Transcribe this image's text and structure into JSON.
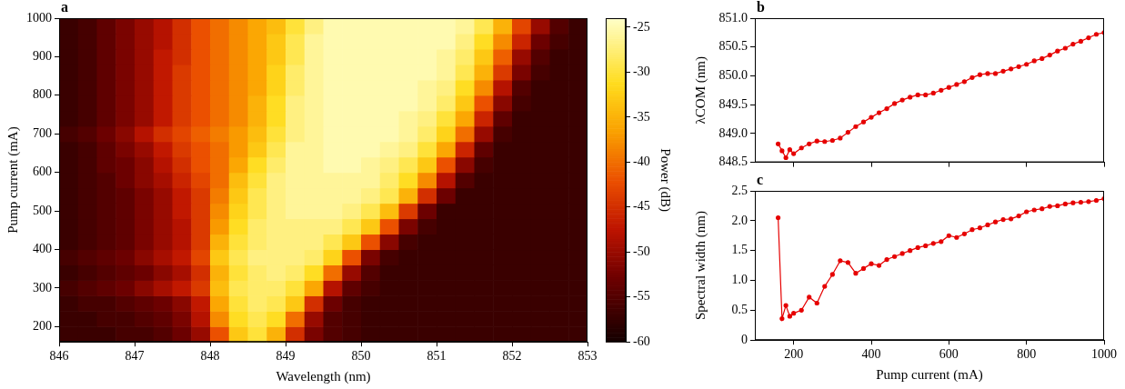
{
  "chart_data": [
    {
      "type": "heatmap",
      "title": "a",
      "xlabel": "Wavelength (nm)",
      "ylabel": "Pump current (mA)",
      "xlim": [
        846,
        853
      ],
      "xticks": [
        846,
        847,
        848,
        849,
        850,
        851,
        852,
        853
      ],
      "ylim": [
        160,
        1000
      ],
      "yticks": [
        200,
        300,
        400,
        500,
        600,
        700,
        800,
        900,
        1000
      ],
      "grid": false,
      "x": [
        846.125,
        846.375,
        846.625,
        846.875,
        847.125,
        847.375,
        847.625,
        847.875,
        848.125,
        848.375,
        848.625,
        848.875,
        849.125,
        849.375,
        849.625,
        849.875,
        850.125,
        850.375,
        850.625,
        850.875,
        851.125,
        851.375,
        851.625,
        851.875,
        852.125,
        852.375,
        852.625,
        852.875
      ],
      "y": [
        180,
        220,
        260,
        300,
        340,
        380,
        420,
        460,
        500,
        540,
        580,
        620,
        660,
        700,
        740,
        780,
        820,
        860,
        900,
        940,
        980
      ],
      "z": [
        [
          -57,
          -57,
          -57,
          -56,
          -56,
          -55,
          -53,
          -50,
          -42,
          -33,
          -30,
          -35,
          -45,
          -52,
          -55,
          -56,
          -57,
          -57,
          -57,
          -57,
          -57,
          -57,
          -57,
          -57,
          -57,
          -57,
          -57,
          -57
        ],
        [
          -57,
          -57,
          -56,
          -56,
          -55,
          -54,
          -52,
          -48,
          -38,
          -31,
          -29,
          -31,
          -40,
          -50,
          -55,
          -56,
          -57,
          -57,
          -57,
          -57,
          -57,
          -57,
          -57,
          -57,
          -57,
          -57,
          -57,
          -57
        ],
        [
          -57,
          -56,
          -56,
          -55,
          -54,
          -53,
          -51,
          -47,
          -36,
          -30,
          -28,
          -29,
          -33,
          -45,
          -53,
          -56,
          -57,
          -57,
          -57,
          -57,
          -57,
          -57,
          -57,
          -57,
          -57,
          -57,
          -57,
          -57
        ],
        [
          -56,
          -55,
          -54,
          -53,
          -51,
          -49,
          -47,
          -44,
          -34,
          -29,
          -28,
          -28,
          -30,
          -36,
          -48,
          -54,
          -56,
          -57,
          -57,
          -57,
          -57,
          -57,
          -57,
          -57,
          -57,
          -57,
          -57,
          -57
        ],
        [
          -57,
          -56,
          -55,
          -54,
          -53,
          -51,
          -49,
          -45,
          -35,
          -30,
          -28,
          -27,
          -28,
          -31,
          -40,
          -50,
          -55,
          -57,
          -57,
          -57,
          -57,
          -57,
          -57,
          -57,
          -57,
          -57,
          -57,
          -57
        ],
        [
          -56,
          -55,
          -54,
          -53,
          -51,
          -49,
          -47,
          -43,
          -33,
          -29,
          -27,
          -27,
          -27,
          -28,
          -32,
          -42,
          -52,
          -56,
          -57,
          -57,
          -57,
          -57,
          -57,
          -57,
          -57,
          -57,
          -57,
          -57
        ],
        [
          -57,
          -56,
          -55,
          -54,
          -52,
          -50,
          -48,
          -44,
          -35,
          -30,
          -28,
          -27,
          -27,
          -27,
          -29,
          -33,
          -42,
          -51,
          -56,
          -57,
          -57,
          -57,
          -57,
          -57,
          -57,
          -57,
          -57,
          -57
        ],
        [
          -57,
          -56,
          -55,
          -54,
          -52,
          -50,
          -48,
          -44,
          -37,
          -31,
          -28,
          -27,
          -27,
          -27,
          -27,
          -29,
          -33,
          -42,
          -52,
          -56,
          -57,
          -57,
          -57,
          -57,
          -57,
          -57,
          -57,
          -57
        ],
        [
          -57,
          -56,
          -55,
          -54,
          -52,
          -50,
          -47,
          -44,
          -38,
          -32,
          -29,
          -27,
          -26,
          -26,
          -26,
          -27,
          -29,
          -34,
          -44,
          -53,
          -57,
          -57,
          -57,
          -57,
          -57,
          -57,
          -57,
          -57
        ],
        [
          -57,
          -56,
          -55,
          -54,
          -52,
          -50,
          -47,
          -44,
          -39,
          -33,
          -29,
          -27,
          -26,
          -26,
          -26,
          -26,
          -27,
          -29,
          -35,
          -45,
          -53,
          -57,
          -57,
          -57,
          -57,
          -57,
          -57,
          -57
        ],
        [
          -57,
          -56,
          -55,
          -53,
          -51,
          -49,
          -46,
          -43,
          -40,
          -34,
          -30,
          -27,
          -26,
          -26,
          -26,
          -26,
          -26,
          -28,
          -31,
          -38,
          -48,
          -55,
          -57,
          -57,
          -57,
          -57,
          -57,
          -57
        ],
        [
          -57,
          -56,
          -54,
          -53,
          -51,
          -48,
          -45,
          -42,
          -40,
          -36,
          -31,
          -28,
          -26,
          -26,
          -25,
          -25,
          -26,
          -27,
          -29,
          -33,
          -42,
          -51,
          -56,
          -57,
          -57,
          -57,
          -57,
          -57
        ],
        [
          -57,
          -56,
          -54,
          -52,
          -50,
          -47,
          -44,
          -42,
          -40,
          -37,
          -33,
          -29,
          -26,
          -26,
          -25,
          -25,
          -25,
          -26,
          -27,
          -30,
          -36,
          -46,
          -54,
          -57,
          -57,
          -57,
          -57,
          -57
        ],
        [
          -56,
          -55,
          -53,
          -51,
          -48,
          -45,
          -43,
          -41,
          -39,
          -37,
          -34,
          -30,
          -27,
          -26,
          -25,
          -25,
          -25,
          -25,
          -26,
          -28,
          -32,
          -40,
          -50,
          -56,
          -57,
          -57,
          -57,
          -57
        ],
        [
          -57,
          -56,
          -54,
          -52,
          -50,
          -47,
          -44,
          -42,
          -40,
          -38,
          -35,
          -31,
          -27,
          -26,
          -25,
          -25,
          -25,
          -25,
          -26,
          -27,
          -30,
          -36,
          -46,
          -54,
          -57,
          -57,
          -57,
          -57
        ],
        [
          -57,
          -56,
          -54,
          -52,
          -50,
          -47,
          -44,
          -42,
          -40,
          -38,
          -35,
          -31,
          -27,
          -26,
          -25,
          -25,
          -25,
          -25,
          -25,
          -26,
          -28,
          -33,
          -42,
          -51,
          -56,
          -57,
          -57,
          -57
        ],
        [
          -57,
          -56,
          -54,
          -52,
          -50,
          -47,
          -44,
          -42,
          -40,
          -38,
          -36,
          -32,
          -28,
          -26,
          -25,
          -25,
          -25,
          -25,
          -25,
          -26,
          -27,
          -31,
          -38,
          -48,
          -55,
          -57,
          -57,
          -57
        ],
        [
          -57,
          -56,
          -54,
          -52,
          -50,
          -47,
          -44,
          -42,
          -40,
          -38,
          -36,
          -32,
          -28,
          -26,
          -25,
          -25,
          -25,
          -25,
          -25,
          -25,
          -26,
          -29,
          -35,
          -44,
          -52,
          -56,
          -57,
          -57
        ],
        [
          -57,
          -56,
          -54,
          -52,
          -50,
          -47,
          -45,
          -42,
          -40,
          -38,
          -36,
          -33,
          -29,
          -26,
          -25,
          -25,
          -25,
          -25,
          -25,
          -25,
          -26,
          -28,
          -33,
          -41,
          -50,
          -55,
          -57,
          -57
        ],
        [
          -57,
          -56,
          -54,
          -52,
          -50,
          -48,
          -45,
          -42,
          -40,
          -38,
          -36,
          -33,
          -29,
          -26,
          -25,
          -25,
          -25,
          -25,
          -25,
          -25,
          -25,
          -27,
          -31,
          -38,
          -46,
          -53,
          -56,
          -57
        ],
        [
          -57,
          -56,
          -54,
          -52,
          -50,
          -48,
          -45,
          -42,
          -40,
          -38,
          -36,
          -34,
          -30,
          -27,
          -25,
          -25,
          -25,
          -25,
          -25,
          -25,
          -25,
          -26,
          -29,
          -35,
          -43,
          -50,
          -55,
          -57
        ]
      ],
      "colorbar": {
        "label": "Power (dB)",
        "range": [
          -60,
          -24
        ],
        "ticks": [
          -60,
          -55,
          -50,
          -45,
          -40,
          -35,
          -30,
          -25
        ]
      }
    },
    {
      "type": "line",
      "title": "b",
      "ylabel": "λCOM (nm)",
      "color": "#e60000",
      "marker": "circle",
      "line_style": "solid",
      "grid": false,
      "tick_labels": "y",
      "xlim": [
        100,
        1000
      ],
      "xticks": [
        200,
        400,
        600,
        800,
        1000
      ],
      "ylim": [
        848.5,
        851
      ],
      "yticks": [
        848.5,
        {
          "value": 849,
          "label": "849.0"
        },
        849.5,
        {
          "value": 850,
          "label": "850.0"
        },
        850.5,
        {
          "value": 851,
          "label": "851.0"
        }
      ],
      "x": [
        160,
        170,
        180,
        190,
        200,
        220,
        240,
        260,
        280,
        300,
        320,
        340,
        360,
        380,
        400,
        420,
        440,
        460,
        480,
        500,
        520,
        540,
        560,
        580,
        600,
        620,
        640,
        660,
        680,
        700,
        720,
        740,
        760,
        780,
        800,
        820,
        840,
        860,
        880,
        900,
        920,
        940,
        960,
        980,
        1000
      ],
      "values": [
        848.82,
        848.7,
        848.58,
        848.72,
        848.65,
        848.75,
        848.82,
        848.87,
        848.86,
        848.88,
        848.92,
        849.02,
        849.12,
        849.2,
        849.28,
        849.36,
        849.43,
        849.52,
        849.58,
        849.63,
        849.67,
        849.67,
        849.7,
        849.75,
        849.8,
        849.85,
        849.9,
        849.97,
        850.02,
        850.04,
        850.04,
        850.08,
        850.12,
        850.16,
        850.2,
        850.26,
        850.3,
        850.36,
        850.43,
        850.48,
        850.55,
        850.6,
        850.66,
        850.72,
        850.75
      ]
    },
    {
      "type": "line",
      "title": "c",
      "xlabel": "Pump current (mA)",
      "ylabel": "Spectral width (nm)",
      "color": "#e60000",
      "marker": "circle",
      "line_style": "solid",
      "grid": false,
      "xlim": [
        100,
        1000
      ],
      "xticks": [
        200,
        400,
        600,
        800,
        1000
      ],
      "ylim": [
        0,
        2.5
      ],
      "yticks": [
        0,
        0.5,
        {
          "value": 1,
          "label": "1.0"
        },
        1.5,
        {
          "value": 2,
          "label": "2.0"
        },
        2.5
      ],
      "x": [
        160,
        170,
        180,
        190,
        200,
        220,
        240,
        260,
        280,
        300,
        320,
        340,
        360,
        380,
        400,
        420,
        440,
        460,
        480,
        500,
        520,
        540,
        560,
        580,
        600,
        620,
        640,
        660,
        680,
        700,
        720,
        740,
        760,
        780,
        800,
        820,
        840,
        860,
        880,
        900,
        920,
        940,
        960,
        980,
        1000
      ],
      "values": [
        2.05,
        0.36,
        0.58,
        0.4,
        0.45,
        0.5,
        0.72,
        0.62,
        0.9,
        1.1,
        1.33,
        1.3,
        1.12,
        1.2,
        1.28,
        1.25,
        1.35,
        1.4,
        1.45,
        1.5,
        1.55,
        1.58,
        1.62,
        1.65,
        1.75,
        1.72,
        1.78,
        1.85,
        1.88,
        1.93,
        1.98,
        2.02,
        2.03,
        2.08,
        2.15,
        2.18,
        2.2,
        2.24,
        2.25,
        2.28,
        2.3,
        2.31,
        2.32,
        2.34,
        2.37
      ]
    }
  ]
}
